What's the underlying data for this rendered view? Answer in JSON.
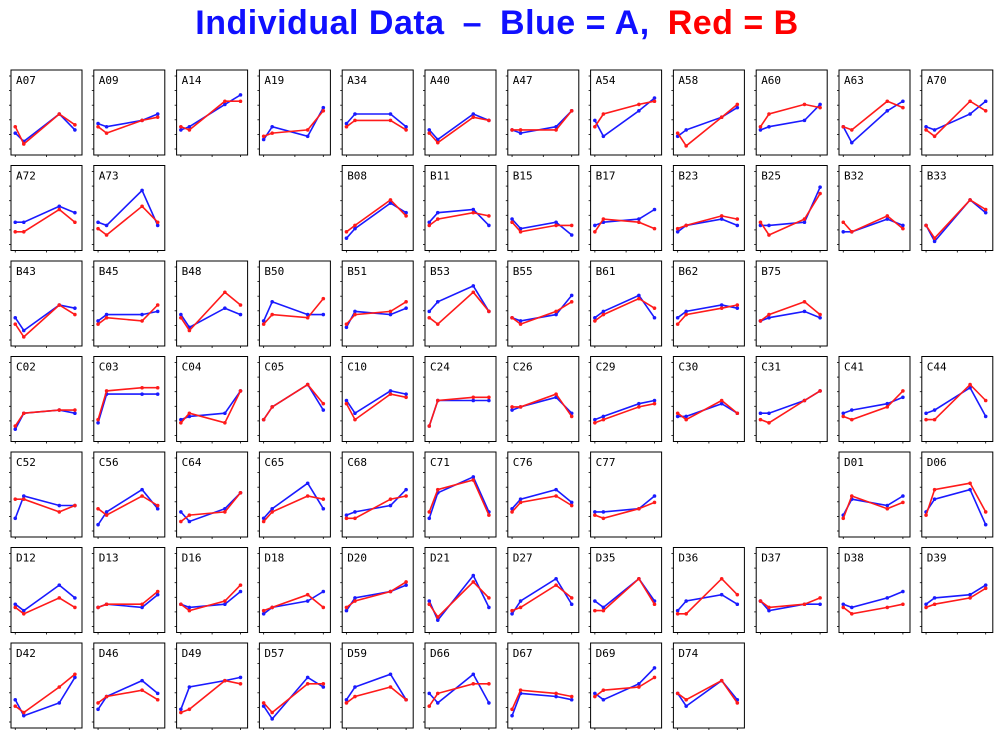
{
  "title": {
    "part1": "Individual Data",
    "dash": "–",
    "part2": "Blue = A,",
    "part3": "Red = B",
    "color_blue": "#1010ff",
    "color_red": "#ff0000",
    "color_black": "#000000"
  },
  "chart_data": {
    "type": "line",
    "title": "Individual Data – Blue = A, Red = B",
    "series_colors": {
      "A": "#1a1aff",
      "B": "#ff1a1a"
    },
    "x": [
      1,
      2,
      3,
      4
    ],
    "ylim": [
      0,
      1
    ],
    "panels": [
      {
        "id": "A07",
        "A": [
          0.25,
          0.12,
          0.55,
          0.3
        ],
        "B": [
          0.35,
          0.08,
          0.55,
          0.38
        ]
      },
      {
        "id": "A09",
        "A": [
          0.4,
          0.35,
          0.45,
          0.55
        ],
        "B": [
          0.35,
          0.25,
          0.45,
          0.5
        ]
      },
      {
        "id": "A14",
        "A": [
          0.3,
          0.35,
          0.7,
          0.85
        ],
        "B": [
          0.35,
          0.3,
          0.75,
          0.75
        ]
      },
      {
        "id": "A19",
        "A": [
          0.15,
          0.35,
          0.2,
          0.65
        ],
        "B": [
          0.2,
          0.25,
          0.3,
          0.6
        ]
      },
      {
        "id": "A34",
        "A": [
          0.4,
          0.55,
          0.55,
          0.35
        ],
        "B": [
          0.35,
          0.45,
          0.45,
          0.3
        ]
      },
      {
        "id": "A40",
        "A": [
          0.3,
          0.15,
          0.55,
          0.45
        ],
        "B": [
          0.25,
          0.1,
          0.5,
          0.45
        ]
      },
      {
        "id": "A47",
        "A": [
          0.3,
          0.25,
          0.35,
          0.6
        ],
        "B": [
          0.3,
          0.3,
          0.3,
          0.6
        ]
      },
      {
        "id": "A54",
        "A": [
          0.45,
          0.2,
          0.6,
          0.8
        ],
        "B": [
          0.35,
          0.55,
          0.7,
          0.75
        ]
      },
      {
        "id": "A58",
        "A": [
          0.2,
          0.3,
          0.5,
          0.65
        ],
        "B": [
          0.25,
          0.05,
          0.5,
          0.7
        ]
      },
      {
        "id": "A60",
        "A": [
          0.3,
          0.35,
          0.45,
          0.7
        ],
        "B": [
          0.35,
          0.55,
          0.7,
          0.65
        ]
      },
      {
        "id": "A63",
        "A": [
          0.35,
          0.1,
          0.6,
          0.75
        ],
        "B": [
          0.35,
          0.3,
          0.75,
          0.65
        ]
      },
      {
        "id": "A70",
        "A": [
          0.35,
          0.3,
          0.55,
          0.75
        ],
        "B": [
          0.3,
          0.2,
          0.75,
          0.6
        ]
      },
      {
        "id": "A72",
        "A": [
          0.35,
          0.35,
          0.6,
          0.5
        ],
        "B": [
          0.2,
          0.2,
          0.55,
          0.35
        ]
      },
      {
        "id": "A73",
        "A": [
          0.35,
          0.3,
          0.85,
          0.3
        ],
        "B": [
          0.25,
          0.15,
          0.6,
          0.35
        ]
      },
      {
        "id": "B08",
        "A": [
          0.1,
          0.25,
          0.65,
          0.5
        ],
        "B": [
          0.2,
          0.3,
          0.7,
          0.45
        ]
      },
      {
        "id": "B11",
        "A": [
          0.35,
          0.5,
          0.55,
          0.3
        ],
        "B": [
          0.3,
          0.4,
          0.5,
          0.45
        ]
      },
      {
        "id": "B15",
        "A": [
          0.4,
          0.25,
          0.35,
          0.15
        ],
        "B": [
          0.35,
          0.2,
          0.3,
          0.3
        ]
      },
      {
        "id": "B17",
        "A": [
          0.3,
          0.35,
          0.4,
          0.55
        ],
        "B": [
          0.2,
          0.4,
          0.35,
          0.25
        ]
      },
      {
        "id": "B23",
        "A": [
          0.2,
          0.3,
          0.4,
          0.3
        ],
        "B": [
          0.25,
          0.3,
          0.45,
          0.4
        ]
      },
      {
        "id": "B25",
        "A": [
          0.3,
          0.3,
          0.35,
          0.9
        ],
        "B": [
          0.35,
          0.15,
          0.4,
          0.8
        ]
      },
      {
        "id": "B32",
        "A": [
          0.2,
          0.2,
          0.4,
          0.3
        ],
        "B": [
          0.35,
          0.2,
          0.45,
          0.25
        ]
      },
      {
        "id": "B33",
        "A": [
          0.3,
          0.05,
          0.7,
          0.5
        ],
        "B": [
          0.3,
          0.1,
          0.7,
          0.55
        ]
      },
      {
        "id": "B43",
        "A": [
          0.35,
          0.15,
          0.55,
          0.5
        ],
        "B": [
          0.25,
          0.05,
          0.55,
          0.4
        ]
      },
      {
        "id": "B45",
        "A": [
          0.3,
          0.4,
          0.4,
          0.45
        ],
        "B": [
          0.25,
          0.35,
          0.3,
          0.55
        ]
      },
      {
        "id": "B48",
        "A": [
          0.4,
          0.2,
          0.5,
          0.4
        ],
        "B": [
          0.35,
          0.15,
          0.75,
          0.55
        ]
      },
      {
        "id": "B50",
        "A": [
          0.3,
          0.6,
          0.4,
          0.4
        ],
        "B": [
          0.25,
          0.4,
          0.35,
          0.65
        ]
      },
      {
        "id": "B51",
        "A": [
          0.2,
          0.45,
          0.4,
          0.5
        ],
        "B": [
          0.25,
          0.4,
          0.45,
          0.6
        ]
      },
      {
        "id": "B53",
        "A": [
          0.45,
          0.6,
          0.85,
          0.45
        ],
        "B": [
          0.35,
          0.25,
          0.75,
          0.45
        ]
      },
      {
        "id": "B55",
        "A": [
          0.35,
          0.3,
          0.4,
          0.7
        ],
        "B": [
          0.35,
          0.25,
          0.45,
          0.6
        ]
      },
      {
        "id": "B61",
        "A": [
          0.35,
          0.45,
          0.7,
          0.35
        ],
        "B": [
          0.3,
          0.4,
          0.65,
          0.5
        ]
      },
      {
        "id": "B62",
        "A": [
          0.35,
          0.45,
          0.55,
          0.5
        ],
        "B": [
          0.25,
          0.4,
          0.5,
          0.55
        ]
      },
      {
        "id": "B75",
        "A": [
          0.3,
          0.35,
          0.45,
          0.35
        ],
        "B": [
          0.3,
          0.4,
          0.6,
          0.4
        ]
      },
      {
        "id": "C02",
        "A": [
          0.1,
          0.35,
          0.4,
          0.35
        ],
        "B": [
          0.15,
          0.35,
          0.4,
          0.4
        ]
      },
      {
        "id": "C03",
        "A": [
          0.2,
          0.65,
          0.65,
          0.65
        ],
        "B": [
          0.25,
          0.7,
          0.75,
          0.75
        ]
      },
      {
        "id": "C04",
        "A": [
          0.25,
          0.3,
          0.35,
          0.7
        ],
        "B": [
          0.2,
          0.35,
          0.2,
          0.7
        ]
      },
      {
        "id": "C05",
        "A": [
          0.25,
          0.45,
          0.8,
          0.4
        ],
        "B": [
          0.25,
          0.45,
          0.8,
          0.5
        ]
      },
      {
        "id": "C10",
        "A": [
          0.55,
          0.35,
          0.7,
          0.65
        ],
        "B": [
          0.5,
          0.25,
          0.65,
          0.6
        ]
      },
      {
        "id": "C24",
        "A": [
          0.15,
          0.55,
          0.55,
          0.55
        ],
        "B": [
          0.15,
          0.55,
          0.6,
          0.6
        ]
      },
      {
        "id": "C26",
        "A": [
          0.4,
          0.45,
          0.6,
          0.35
        ],
        "B": [
          0.45,
          0.45,
          0.65,
          0.3
        ]
      },
      {
        "id": "C29",
        "A": [
          0.25,
          0.3,
          0.5,
          0.55
        ],
        "B": [
          0.2,
          0.25,
          0.45,
          0.5
        ]
      },
      {
        "id": "C30",
        "A": [
          0.3,
          0.3,
          0.5,
          0.35
        ],
        "B": [
          0.35,
          0.25,
          0.55,
          0.35
        ]
      },
      {
        "id": "C31",
        "A": [
          0.35,
          0.35,
          0.55,
          0.7
        ],
        "B": [
          0.25,
          0.2,
          0.55,
          0.7
        ]
      },
      {
        "id": "C41",
        "A": [
          0.35,
          0.4,
          0.5,
          0.6
        ],
        "B": [
          0.3,
          0.25,
          0.45,
          0.7
        ]
      },
      {
        "id": "C44",
        "A": [
          0.35,
          0.4,
          0.75,
          0.3
        ],
        "B": [
          0.25,
          0.25,
          0.8,
          0.55
        ]
      },
      {
        "id": "C52",
        "A": [
          0.2,
          0.55,
          0.4,
          0.4
        ],
        "B": [
          0.5,
          0.5,
          0.3,
          0.4
        ]
      },
      {
        "id": "C56",
        "A": [
          0.1,
          0.3,
          0.65,
          0.35
        ],
        "B": [
          0.35,
          0.25,
          0.55,
          0.4
        ]
      },
      {
        "id": "C64",
        "A": [
          0.3,
          0.15,
          0.35,
          0.6
        ],
        "B": [
          0.15,
          0.25,
          0.3,
          0.6
        ]
      },
      {
        "id": "C65",
        "A": [
          0.2,
          0.35,
          0.75,
          0.35
        ],
        "B": [
          0.15,
          0.3,
          0.55,
          0.5
        ]
      },
      {
        "id": "C68",
        "A": [
          0.25,
          0.3,
          0.4,
          0.65
        ],
        "B": [
          0.2,
          0.2,
          0.5,
          0.55
        ]
      },
      {
        "id": "C71",
        "A": [
          0.2,
          0.6,
          0.85,
          0.3
        ],
        "B": [
          0.3,
          0.65,
          0.8,
          0.25
        ]
      },
      {
        "id": "C76",
        "A": [
          0.35,
          0.5,
          0.65,
          0.45
        ],
        "B": [
          0.3,
          0.45,
          0.55,
          0.4
        ]
      },
      {
        "id": "C77",
        "A": [
          0.3,
          0.3,
          0.35,
          0.55
        ],
        "B": [
          0.25,
          0.2,
          0.35,
          0.45
        ]
      },
      {
        "id": "D01",
        "A": [
          0.25,
          0.5,
          0.4,
          0.55
        ],
        "B": [
          0.2,
          0.55,
          0.35,
          0.45
        ]
      },
      {
        "id": "D06",
        "A": [
          0.3,
          0.5,
          0.65,
          0.1
        ],
        "B": [
          0.25,
          0.65,
          0.75,
          0.3
        ]
      },
      {
        "id": "D12",
        "A": [
          0.35,
          0.25,
          0.65,
          0.45
        ],
        "B": [
          0.3,
          0.2,
          0.45,
          0.3
        ]
      },
      {
        "id": "D13",
        "A": [
          0.3,
          0.35,
          0.3,
          0.5
        ],
        "B": [
          0.3,
          0.35,
          0.35,
          0.55
        ]
      },
      {
        "id": "D16",
        "A": [
          0.35,
          0.3,
          0.35,
          0.55
        ],
        "B": [
          0.35,
          0.25,
          0.4,
          0.65
        ]
      },
      {
        "id": "D18",
        "A": [
          0.2,
          0.3,
          0.4,
          0.55
        ],
        "B": [
          0.25,
          0.3,
          0.5,
          0.3
        ]
      },
      {
        "id": "D20",
        "A": [
          0.25,
          0.45,
          0.55,
          0.65
        ],
        "B": [
          0.3,
          0.4,
          0.55,
          0.7
        ]
      },
      {
        "id": "D21",
        "A": [
          0.4,
          0.1,
          0.8,
          0.3
        ],
        "B": [
          0.35,
          0.15,
          0.7,
          0.45
        ]
      },
      {
        "id": "D27",
        "A": [
          0.2,
          0.4,
          0.75,
          0.35
        ],
        "B": [
          0.25,
          0.3,
          0.65,
          0.45
        ]
      },
      {
        "id": "D35",
        "A": [
          0.4,
          0.3,
          0.75,
          0.4
        ],
        "B": [
          0.25,
          0.25,
          0.75,
          0.35
        ]
      },
      {
        "id": "D36",
        "A": [
          0.25,
          0.4,
          0.5,
          0.35
        ],
        "B": [
          0.2,
          0.2,
          0.75,
          0.5
        ]
      },
      {
        "id": "D37",
        "A": [
          0.4,
          0.25,
          0.35,
          0.35
        ],
        "B": [
          0.4,
          0.3,
          0.35,
          0.45
        ]
      },
      {
        "id": "D38",
        "A": [
          0.35,
          0.3,
          0.45,
          0.55
        ],
        "B": [
          0.3,
          0.2,
          0.3,
          0.35
        ]
      },
      {
        "id": "D39",
        "A": [
          0.35,
          0.45,
          0.5,
          0.65
        ],
        "B": [
          0.3,
          0.35,
          0.45,
          0.6
        ]
      },
      {
        "id": "D42",
        "A": [
          0.35,
          0.1,
          0.3,
          0.7
        ],
        "B": [
          0.25,
          0.15,
          0.55,
          0.75
        ]
      },
      {
        "id": "D46",
        "A": [
          0.2,
          0.4,
          0.65,
          0.45
        ],
        "B": [
          0.3,
          0.4,
          0.5,
          0.35
        ]
      },
      {
        "id": "D49",
        "A": [
          0.2,
          0.55,
          0.65,
          0.7
        ],
        "B": [
          0.15,
          0.2,
          0.65,
          0.6
        ]
      },
      {
        "id": "D57",
        "A": [
          0.25,
          0.05,
          0.7,
          0.55
        ],
        "B": [
          0.3,
          0.15,
          0.6,
          0.6
        ]
      },
      {
        "id": "D59",
        "A": [
          0.35,
          0.55,
          0.75,
          0.35
        ],
        "B": [
          0.3,
          0.4,
          0.55,
          0.35
        ]
      },
      {
        "id": "D66",
        "A": [
          0.45,
          0.3,
          0.75,
          0.3
        ],
        "B": [
          0.25,
          0.45,
          0.6,
          0.6
        ]
      },
      {
        "id": "D67",
        "A": [
          0.1,
          0.45,
          0.4,
          0.35
        ],
        "B": [
          0.2,
          0.5,
          0.45,
          0.4
        ]
      },
      {
        "id": "D69",
        "A": [
          0.45,
          0.35,
          0.6,
          0.85
        ],
        "B": [
          0.4,
          0.5,
          0.55,
          0.7
        ]
      },
      {
        "id": "D74",
        "A": [
          0.45,
          0.25,
          0.65,
          0.35
        ],
        "B": [
          0.45,
          0.35,
          0.65,
          0.3
        ]
      }
    ],
    "layout_rows": [
      [
        "A07",
        "A09",
        "A14",
        "A19",
        "A34",
        "A40",
        "A47",
        "A54",
        "A58",
        "A60",
        "A63",
        "A70"
      ],
      [
        "A72",
        "A73",
        "",
        "",
        "B08",
        "B11",
        "B15",
        "B17",
        "B23",
        "B25",
        "B32",
        "B33"
      ],
      [
        "B43",
        "B45",
        "B48",
        "B50",
        "B51",
        "B53",
        "B55",
        "B61",
        "B62",
        "B75",
        "",
        ""
      ],
      [
        "C02",
        "C03",
        "C04",
        "C05",
        "C10",
        "C24",
        "C26",
        "C29",
        "C30",
        "C31",
        "C41",
        "C44"
      ],
      [
        "C52",
        "C56",
        "C64",
        "C65",
        "C68",
        "C71",
        "C76",
        "C77",
        "",
        "",
        "D01",
        "D06"
      ],
      [
        "D12",
        "D13",
        "D16",
        "D18",
        "D20",
        "D21",
        "D27",
        "D35",
        "D36",
        "D37",
        "D38",
        "D39"
      ],
      [
        "D42",
        "D46",
        "D49",
        "D57",
        "D59",
        "D66",
        "D67",
        "D69",
        "D74",
        "",
        "",
        ""
      ]
    ]
  }
}
